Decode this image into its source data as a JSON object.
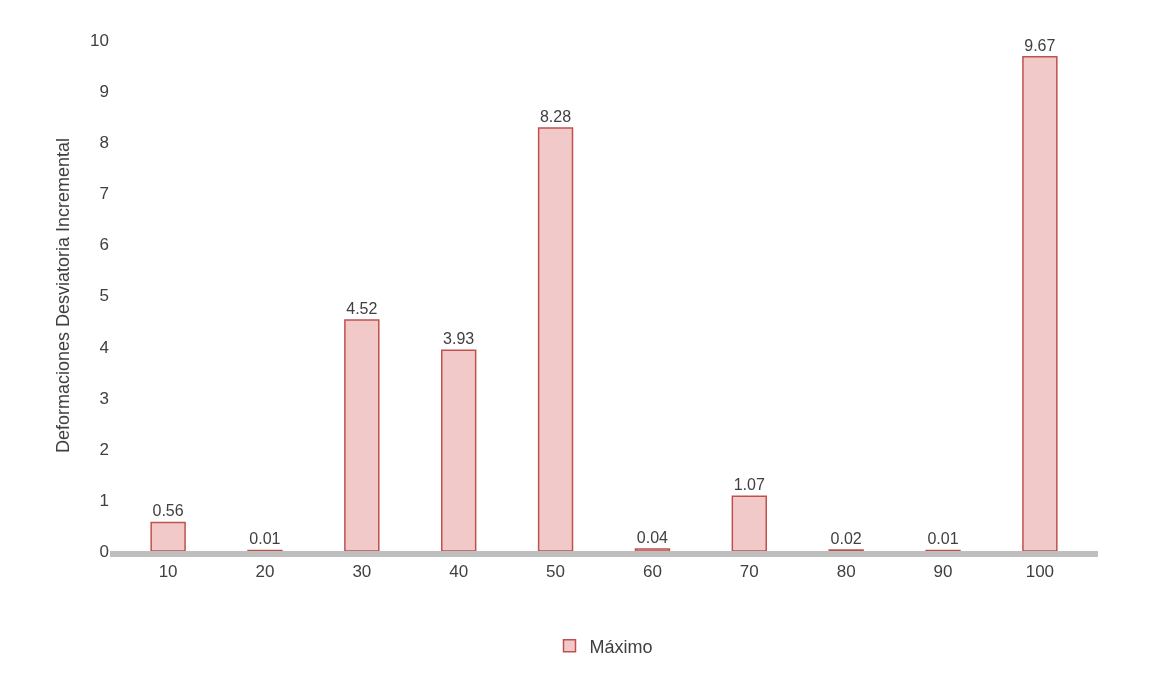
{
  "chart_data": {
    "type": "bar",
    "ylabel": "Deformaciones Desviatoria Incremental",
    "categories": [
      "10",
      "20",
      "30",
      "40",
      "50",
      "60",
      "70",
      "80",
      "90",
      "100"
    ],
    "series": [
      {
        "name": "Máximo",
        "color": "#c0504d",
        "values": [
          0.56,
          0.01,
          4.52,
          3.93,
          8.28,
          0.04,
          1.07,
          0.02,
          0.01,
          9.67
        ]
      }
    ],
    "ylim": [
      0,
      10
    ],
    "yticks": [
      0,
      1,
      2,
      3,
      4,
      5,
      6,
      7,
      8,
      9,
      10
    ],
    "data_labels": true,
    "legend": "bottom"
  }
}
